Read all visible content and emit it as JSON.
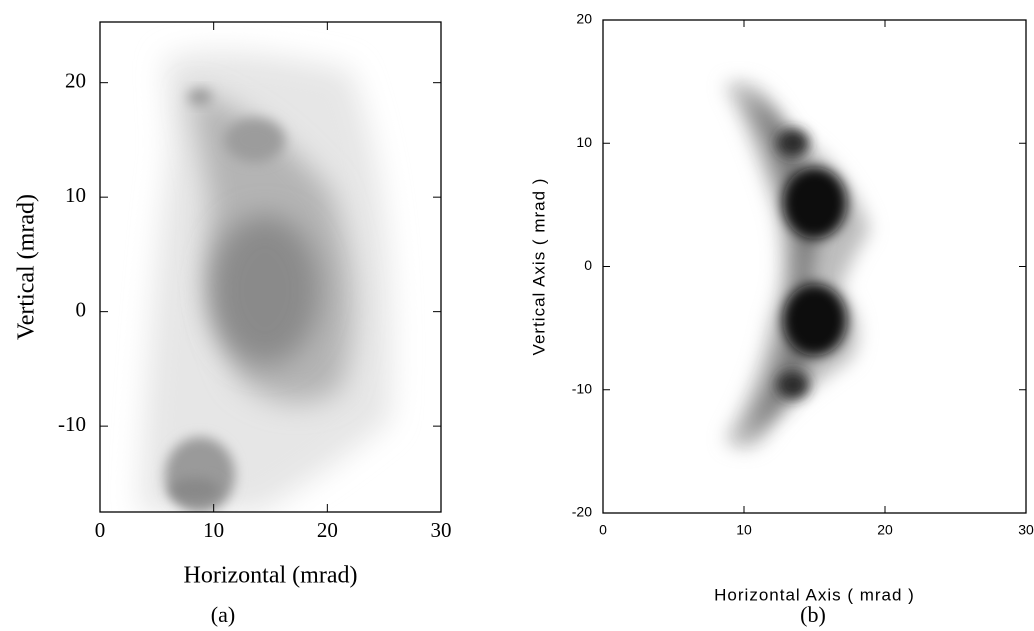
{
  "chart_data": [
    {
      "type": "density",
      "panel_label": "(a)",
      "xlabel": "Horizontal (mrad)",
      "ylabel": "Vertical (mrad)",
      "xlim": [
        0,
        30
      ],
      "xticks": [
        0,
        10,
        20,
        30
      ],
      "ylim": [
        -17.5,
        25.3
      ],
      "yticks": [
        -10,
        0,
        10,
        20
      ]
    },
    {
      "type": "density",
      "panel_label": "(b)",
      "xlabel": "Horizontal Axis ( mrad )",
      "ylabel": "Vertical Axis ( mrad )",
      "xlim": [
        0,
        30
      ],
      "xticks": [
        0,
        10,
        20,
        30
      ],
      "ylim": [
        -20,
        20
      ],
      "yticks": [
        -20,
        -10,
        0,
        10,
        20
      ]
    }
  ]
}
